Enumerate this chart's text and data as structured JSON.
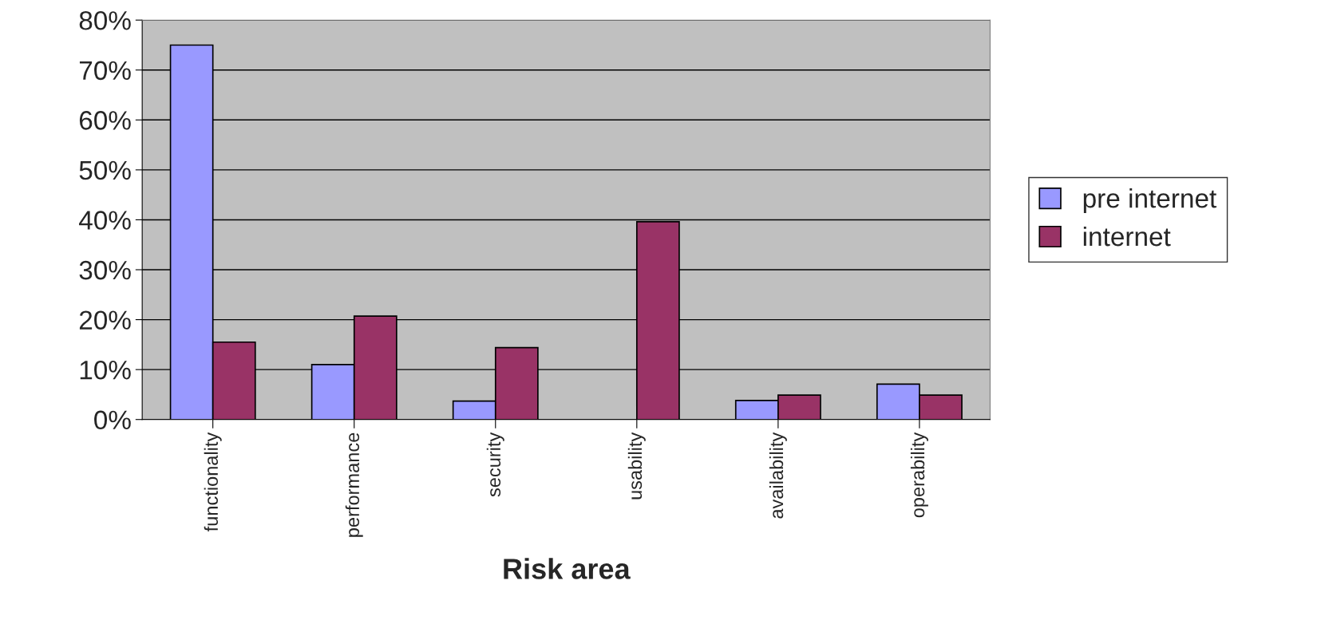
{
  "chart_data": {
    "type": "bar",
    "xlabel": "Risk area",
    "categories": [
      "functionality",
      "performance",
      "security",
      "usability",
      "availability",
      "operability"
    ],
    "series": [
      {
        "name": "pre internet",
        "color": "#9999ff",
        "values": [
          75,
          11,
          3.7,
          0,
          3.8,
          7.1
        ]
      },
      {
        "name": "internet",
        "color": "#993366",
        "values": [
          15.5,
          20.7,
          14.4,
          39.6,
          4.9,
          4.9
        ]
      }
    ],
    "ylim": [
      0,
      80
    ],
    "yticks": [
      {
        "value": 0,
        "label": "0%"
      },
      {
        "value": 10,
        "label": "10%"
      },
      {
        "value": 20,
        "label": "20%"
      },
      {
        "value": 30,
        "label": "30%"
      },
      {
        "value": 40,
        "label": "40%"
      },
      {
        "value": 50,
        "label": "50%"
      },
      {
        "value": 60,
        "label": "60%"
      },
      {
        "value": 70,
        "label": "70%"
      },
      {
        "value": 80,
        "label": "80%"
      }
    ],
    "grid": "y",
    "legend": "right"
  }
}
